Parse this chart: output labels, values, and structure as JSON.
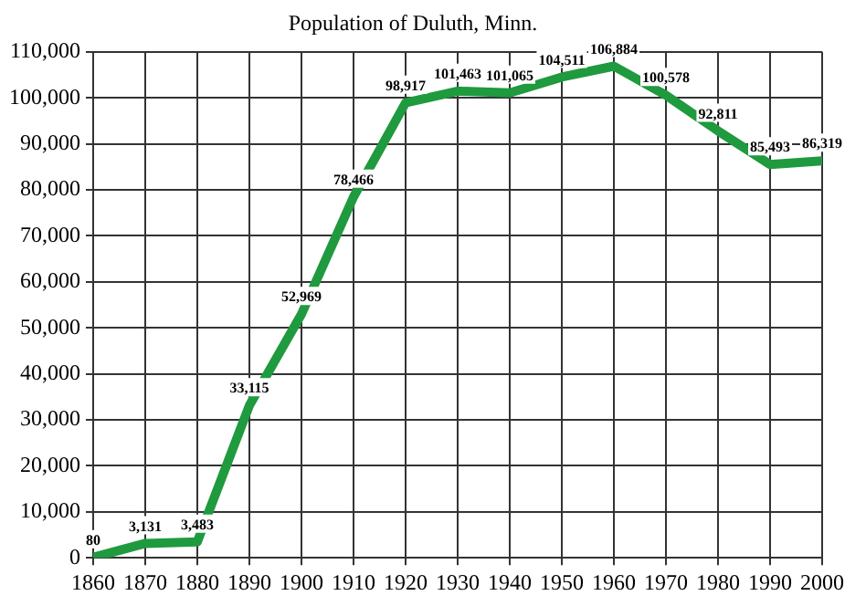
{
  "chart_data": {
    "type": "line",
    "title": "Population of Duluth, Minn.",
    "x": [
      1860,
      1870,
      1880,
      1890,
      1900,
      1910,
      1920,
      1930,
      1940,
      1950,
      1960,
      1970,
      1980,
      1990,
      2000
    ],
    "series": [
      {
        "color": "#1f9a3e",
        "values": [
          80,
          3131,
          3483,
          33115,
          52969,
          78466,
          98917,
          101463,
          101065,
          104511,
          106884,
          100578,
          92811,
          85493,
          86319
        ],
        "value_labels": [
          "80",
          "3,131",
          "3,483",
          "33,115",
          "52,969",
          "78,466",
          "98,917",
          "101,463",
          "101,065",
          "104,511",
          "106,884",
          "100,578",
          "92,811",
          "85,493",
          "86,319"
        ]
      }
    ],
    "xlim": [
      1860,
      2000
    ],
    "xticks": [
      1860,
      1870,
      1880,
      1890,
      1900,
      1910,
      1920,
      1930,
      1940,
      1950,
      1960,
      1970,
      1980,
      1990,
      2000
    ],
    "ylim": [
      0,
      110000
    ],
    "yticks": [
      0,
      {
        "value": 10000,
        "label": "10,000"
      },
      {
        "value": 20000,
        "label": "20,000"
      },
      {
        "value": 30000,
        "label": "30,000"
      },
      {
        "value": 40000,
        "label": "40,000"
      },
      {
        "value": 50000,
        "label": "50,000"
      },
      {
        "value": 60000,
        "label": "60,000"
      },
      {
        "value": 70000,
        "label": "70,000"
      },
      {
        "value": 80000,
        "label": "80,000"
      },
      {
        "value": 90000,
        "label": "90,000"
      },
      {
        "value": 100000,
        "label": "100,000"
      },
      {
        "value": 110000,
        "label": "110,000"
      }
    ],
    "grid": true,
    "legend": false,
    "marker": "none",
    "line_style": "solid"
  }
}
